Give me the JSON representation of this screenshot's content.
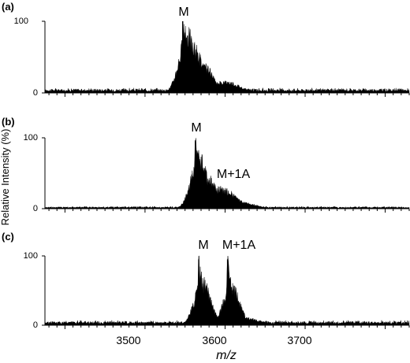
{
  "chart_data": [
    {
      "type": "area",
      "panel": "(a)",
      "xlim": [
        3375,
        3830
      ],
      "ylim": [
        0,
        100
      ],
      "yticks": [
        "0",
        "100"
      ],
      "annotations": [
        {
          "text": "M",
          "x": 3547
        }
      ],
      "peaks": [
        {
          "x": 3547,
          "y": 100
        },
        {
          "x": 3553,
          "y": 80
        },
        {
          "x": 3562,
          "y": 60
        },
        {
          "x": 3575,
          "y": 35
        },
        {
          "x": 3600,
          "y": 15
        }
      ],
      "baseline": 4
    },
    {
      "type": "area",
      "panel": "(b)",
      "xlim": [
        3375,
        3830
      ],
      "ylim": [
        0,
        100
      ],
      "yticks": [
        "0",
        "100"
      ],
      "annotations": [
        {
          "text": "M",
          "x": 3562
        },
        {
          "text": "M+1A",
          "x": 3600
        }
      ],
      "peaks": [
        {
          "x": 3563,
          "y": 97
        },
        {
          "x": 3568,
          "y": 70
        },
        {
          "x": 3580,
          "y": 40
        },
        {
          "x": 3595,
          "y": 27
        },
        {
          "x": 3620,
          "y": 8
        }
      ],
      "baseline": 2
    },
    {
      "type": "area",
      "panel": "(c)",
      "xlim": [
        3375,
        3830
      ],
      "ylim": [
        0,
        100
      ],
      "yticks": [
        "0",
        "100"
      ],
      "annotations": [
        {
          "text": "M",
          "x": 3565
        },
        {
          "text": "M+1A",
          "x": 3604
        }
      ],
      "peaks": [
        {
          "x": 3567,
          "y": 95
        },
        {
          "x": 3572,
          "y": 60
        },
        {
          "x": 3603,
          "y": 95
        },
        {
          "x": 3608,
          "y": 55
        },
        {
          "x": 3625,
          "y": 10
        }
      ],
      "baseline": 4
    }
  ],
  "axes": {
    "ylabel": "Relative Intensity (%)",
    "xlabel": "m/z",
    "xticks": [
      3500,
      3600,
      3700
    ]
  },
  "colors": {
    "fill": "#000000",
    "background": "#ffffff"
  }
}
